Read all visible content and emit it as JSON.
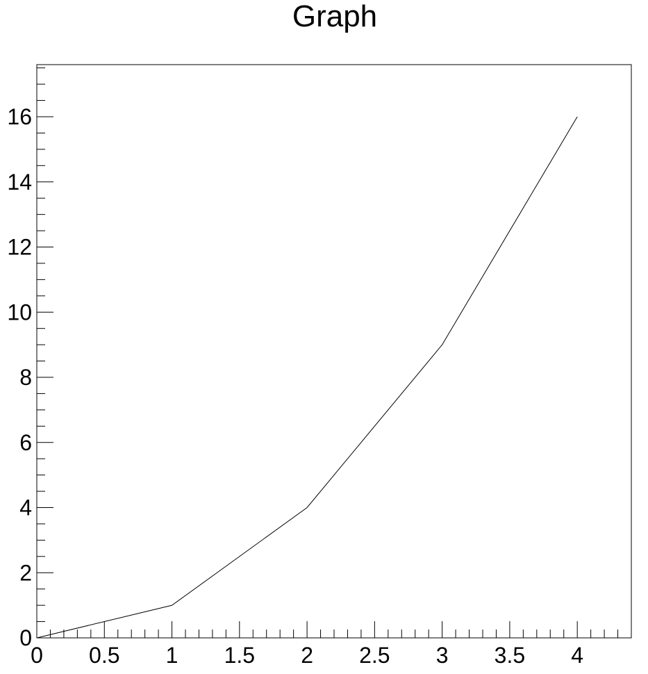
{
  "chart_data": {
    "type": "line",
    "title": "Graph",
    "xlabel": "",
    "ylabel": "",
    "xlim": [
      0,
      4.4
    ],
    "ylim": [
      0,
      17.6
    ],
    "x_ticks": [
      0,
      0.5,
      1,
      1.5,
      2,
      2.5,
      3,
      3.5,
      4
    ],
    "x_tick_labels": [
      "0",
      "0.5",
      "1",
      "1.5",
      "2",
      "2.5",
      "3",
      "3.5",
      "4"
    ],
    "y_ticks": [
      0,
      2,
      4,
      6,
      8,
      10,
      12,
      14,
      16
    ],
    "y_tick_labels": [
      "0",
      "2",
      "4",
      "6",
      "8",
      "10",
      "12",
      "14",
      "16"
    ],
    "grid": false,
    "legend": "none",
    "series": [
      {
        "x": [
          0,
          1,
          2,
          3,
          4
        ],
        "y": [
          0,
          1,
          4,
          9,
          16
        ],
        "color": "#000000"
      }
    ]
  }
}
